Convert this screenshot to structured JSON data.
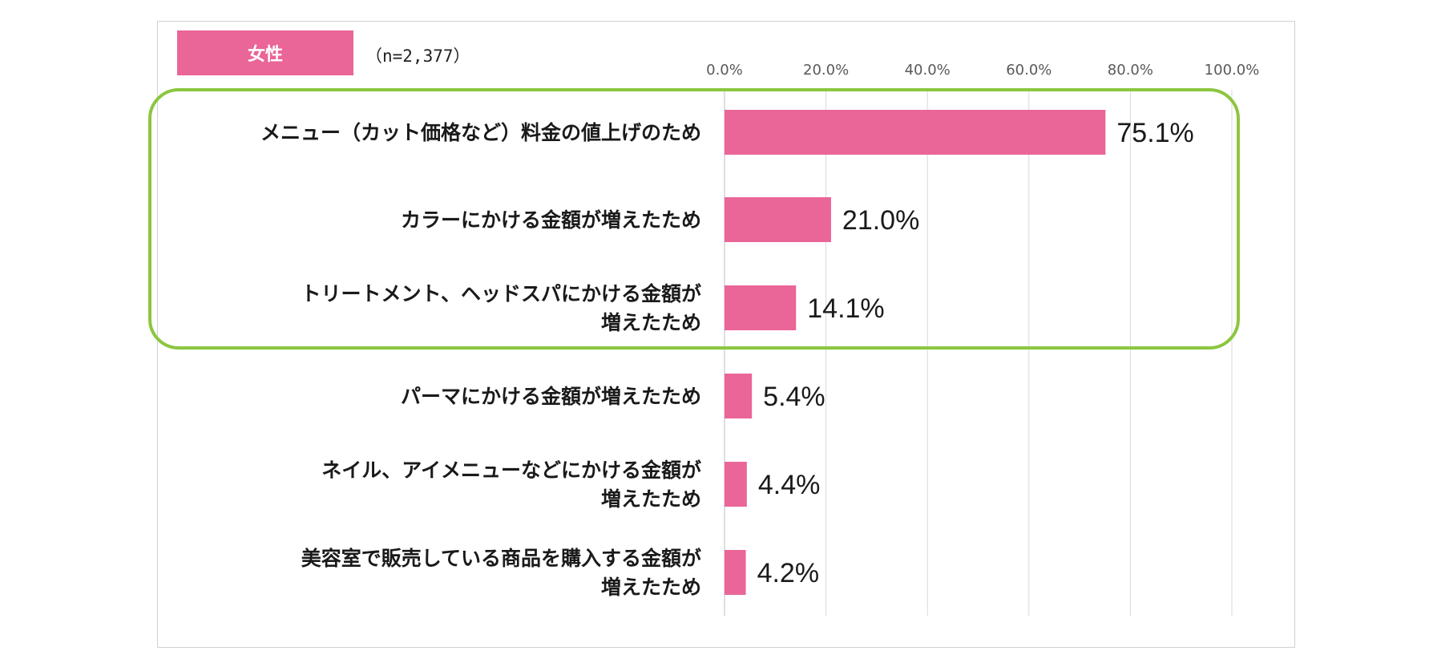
{
  "legend": {
    "badge_label": "女性",
    "sample_size": "（n=2,377）",
    "color": "#ea6598"
  },
  "highlight_color": "#8cc63f",
  "chart_data": {
    "type": "bar",
    "orientation": "horizontal",
    "categories": [
      [
        "メニュー（カット価格など）料金の値上げのため"
      ],
      [
        "カラーにかける金額が増えたため"
      ],
      [
        "トリートメント、ヘッドスパにかける金額が",
        "増えたため"
      ],
      [
        "パーマにかける金額が増えたため"
      ],
      [
        "ネイル、アイメニューなどにかける金額が",
        "増えたため"
      ],
      [
        "美容室で販売している商品を購入する金額が",
        "増えたため"
      ]
    ],
    "values": [
      75.1,
      21.0,
      14.1,
      5.4,
      4.4,
      4.2
    ],
    "value_labels": [
      "75.1%",
      "21.0%",
      "14.1%",
      "5.4%",
      "4.4%",
      "4.2%"
    ],
    "x_ticks": [
      "0.0%",
      "20.0%",
      "40.0%",
      "60.0%",
      "80.0%",
      "100.0%"
    ],
    "xlim": [
      0,
      100
    ],
    "grid": "vertical",
    "highlighted_categories": [
      0,
      1,
      2
    ]
  }
}
